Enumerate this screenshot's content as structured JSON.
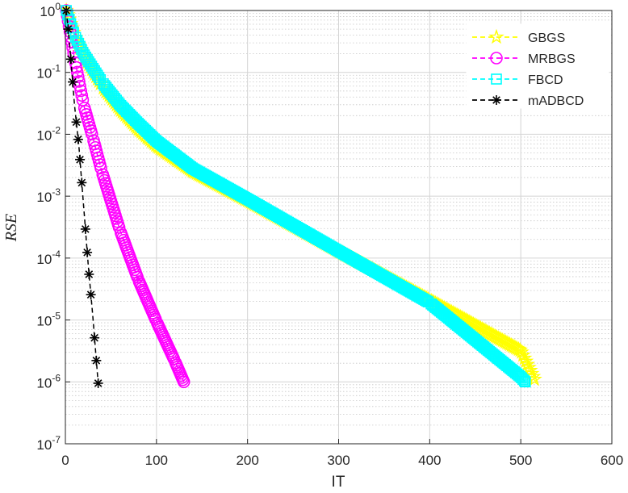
{
  "chart_data": {
    "type": "line",
    "xlabel": "IT",
    "ylabel": "RSE",
    "xlim": [
      0,
      600
    ],
    "ylim": [
      1e-07,
      1
    ],
    "y_scale": "log",
    "grid": true,
    "legend_position": "top-right",
    "x_ticks": [
      "0",
      "100",
      "200",
      "300",
      "400",
      "500",
      "600"
    ],
    "y_ticks": [
      {
        "base": "10",
        "exp": "0"
      },
      {
        "base": "10",
        "exp": "-1"
      },
      {
        "base": "10",
        "exp": "-2"
      },
      {
        "base": "10",
        "exp": "-3"
      },
      {
        "base": "10",
        "exp": "-4"
      },
      {
        "base": "10",
        "exp": "-5"
      },
      {
        "base": "10",
        "exp": "-6"
      },
      {
        "base": "10",
        "exp": "-7"
      }
    ],
    "series": [
      {
        "name": "GBGS",
        "color": "#ffff00",
        "marker": "pentagram",
        "line_style": "dashed",
        "x": [
          1,
          10,
          20,
          40,
          60,
          80,
          100,
          140,
          200,
          300,
          400,
          500,
          515
        ],
        "y": [
          1,
          0.4,
          0.18,
          0.06,
          0.025,
          0.012,
          0.0065,
          0.0025,
          0.00085,
          0.00013,
          2.1e-05,
          3.2e-06,
          1.1e-06
        ]
      },
      {
        "name": "MRBGS",
        "color": "#ff00ff",
        "marker": "circle",
        "line_style": "dashed",
        "x": [
          1,
          10,
          20,
          30,
          40,
          60,
          80,
          100,
          120,
          130
        ],
        "y": [
          1,
          0.17,
          0.03,
          0.009,
          0.0025,
          0.00028,
          4.5e-05,
          9.5e-06,
          2.2e-06,
          1e-06
        ]
      },
      {
        "name": "FBCD",
        "color": "#00ffff",
        "marker": "square",
        "line_style": "dashed",
        "x": [
          1,
          10,
          20,
          40,
          60,
          80,
          100,
          140,
          200,
          300,
          400,
          500,
          505
        ],
        "y": [
          1,
          0.4,
          0.2,
          0.07,
          0.03,
          0.015,
          0.0078,
          0.0028,
          0.0009,
          0.00013,
          1.9e-05,
          1.2e-06,
          1e-06
        ]
      },
      {
        "name": "mADBCD",
        "color": "#000000",
        "marker": "asterisk",
        "line_style": "dashed",
        "x": [
          1,
          5,
          10,
          15,
          20,
          25,
          30,
          36
        ],
        "y": [
          1,
          0.25,
          0.03,
          0.006,
          0.0007,
          8e-05,
          1.2e-05,
          9.5e-07
        ]
      }
    ]
  }
}
